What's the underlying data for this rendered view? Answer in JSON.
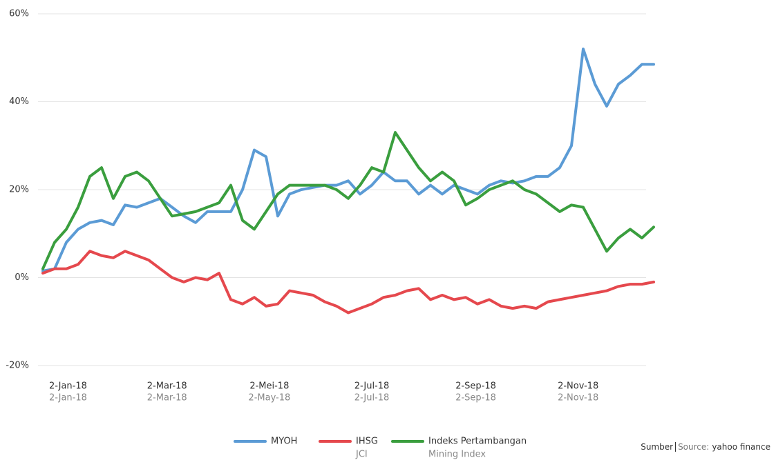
{
  "chart_data": {
    "type": "line",
    "x": [
      "2017-12-18",
      "2017-12-25",
      "2018-01-01",
      "2018-01-08",
      "2018-01-15",
      "2018-01-22",
      "2018-01-29",
      "2018-02-05",
      "2018-02-12",
      "2018-02-19",
      "2018-02-26",
      "2018-03-05",
      "2018-03-12",
      "2018-03-19",
      "2018-03-26",
      "2018-04-02",
      "2018-04-09",
      "2018-04-16",
      "2018-04-23",
      "2018-04-30",
      "2018-05-07",
      "2018-05-14",
      "2018-05-21",
      "2018-05-28",
      "2018-06-04",
      "2018-06-11",
      "2018-06-18",
      "2018-06-25",
      "2018-07-02",
      "2018-07-09",
      "2018-07-16",
      "2018-07-23",
      "2018-07-30",
      "2018-08-06",
      "2018-08-13",
      "2018-08-20",
      "2018-08-27",
      "2018-09-03",
      "2018-09-10",
      "2018-09-17",
      "2018-09-24",
      "2018-10-01",
      "2018-10-08",
      "2018-10-15",
      "2018-10-22",
      "2018-10-29",
      "2018-11-05",
      "2018-11-12",
      "2018-11-19",
      "2018-11-26",
      "2018-12-03",
      "2018-12-10",
      "2018-12-17"
    ],
    "xlim": [
      "2017-12-18",
      "2018-12-17"
    ],
    "xticks": [
      {
        "value": "2018-01-02",
        "label": "2-Jan-18"
      },
      {
        "value": "2018-03-02",
        "label": "2-Mar-18"
      },
      {
        "value": "2018-05-02",
        "label": "2-Mei-18"
      },
      {
        "value": "2018-07-02",
        "label": "2-Jul-18"
      },
      {
        "value": "2018-09-02",
        "label": "2-Sep-18"
      },
      {
        "value": "2018-11-02",
        "label": "2-Nov-18"
      }
    ],
    "xtick_labels_en": [
      "2-Jan-18",
      "2-Mar-18",
      "2-May-18",
      "2-Jul-18",
      "2-Sep-18",
      "2-Nov-18"
    ],
    "ylim": [
      -20,
      60
    ],
    "yticks": [
      {
        "value": -20,
        "label": "-20%"
      },
      {
        "value": 0,
        "label": "0%"
      },
      {
        "value": 20,
        "label": "20%"
      },
      {
        "value": 40,
        "label": "40%"
      },
      {
        "value": 60,
        "label": "60%"
      }
    ],
    "grid": true,
    "legend": "bottom",
    "series": [
      {
        "name": "MYOH",
        "color": "#5b9bd5",
        "values": [
          1.5,
          2,
          8,
          11,
          12.5,
          13,
          12,
          16.5,
          16,
          17,
          18,
          16,
          14,
          12.5,
          15,
          15,
          15,
          20,
          29,
          27.5,
          14,
          19,
          20,
          20.5,
          21,
          21,
          22,
          19,
          21,
          24,
          22,
          22,
          19,
          21,
          19,
          21,
          20,
          19,
          21,
          22,
          21.5,
          22,
          23,
          23,
          25,
          30,
          52,
          44,
          39,
          44,
          46,
          48.5,
          48.5
        ]
      },
      {
        "name": "IHSG",
        "name_en": "JCI",
        "color": "#e5484d",
        "values": [
          1,
          2,
          2,
          3,
          6,
          5,
          4.5,
          6,
          5,
          4,
          2,
          0,
          -1,
          0,
          -0.5,
          1,
          -5,
          -6,
          -4.5,
          -6.5,
          -6,
          -3,
          -3.5,
          -4,
          -5.5,
          -6.5,
          -8,
          -7,
          -6,
          -4.5,
          -4,
          -3,
          -2.5,
          -5,
          -4,
          -5,
          -4.5,
          -6,
          -5,
          -6.5,
          -7,
          -6.5,
          -7,
          -5.5,
          -5,
          -4.5,
          -4,
          -3.5,
          -3,
          -2,
          -1.5,
          -1.5,
          -1
        ]
      },
      {
        "name": "Indeks Pertambangan",
        "name_en": "Mining Index",
        "color": "#3a9e3e",
        "values": [
          2,
          8,
          11,
          16,
          23,
          25,
          18,
          23,
          24,
          22,
          18,
          14,
          14.5,
          15,
          16,
          17,
          21,
          13,
          11,
          15,
          19,
          21,
          21,
          21,
          21,
          20,
          18,
          21,
          25,
          24,
          33,
          29,
          25,
          22,
          24,
          22,
          16.5,
          18,
          20,
          21,
          22,
          20,
          19,
          17,
          15,
          16.5,
          16,
          11,
          6,
          9,
          11,
          9,
          11.5
        ]
      }
    ],
    "source_prefix": "Sumber",
    "source_label": "Source:",
    "source": "yahoo finance"
  }
}
